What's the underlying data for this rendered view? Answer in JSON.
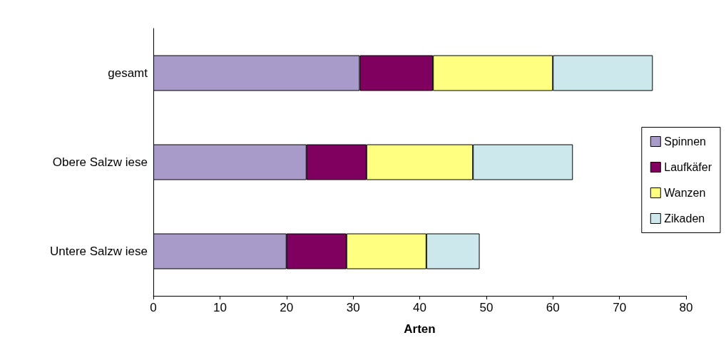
{
  "chart_data": {
    "type": "bar",
    "orientation": "horizontal",
    "stacked": true,
    "xlabel": "Arten",
    "categories": [
      "gesamt",
      "Obere Salzw iese",
      "Untere Salzw iese"
    ],
    "series": [
      {
        "name": "Spinnen",
        "color": "#a99bc9",
        "values": [
          31,
          23,
          20
        ]
      },
      {
        "name": "Laufkäfer",
        "color": "#800060",
        "values": [
          11,
          9,
          9
        ]
      },
      {
        "name": "Wanzen",
        "color": "#ffff80",
        "values": [
          18,
          16,
          12
        ]
      },
      {
        "name": "Zikaden",
        "color": "#cce8ec",
        "values": [
          15,
          15,
          8
        ]
      }
    ],
    "xlim": [
      0,
      80
    ],
    "xticks": [
      0,
      10,
      20,
      30,
      40,
      50,
      60,
      70,
      80
    ],
    "grid": false,
    "legend": "right"
  }
}
